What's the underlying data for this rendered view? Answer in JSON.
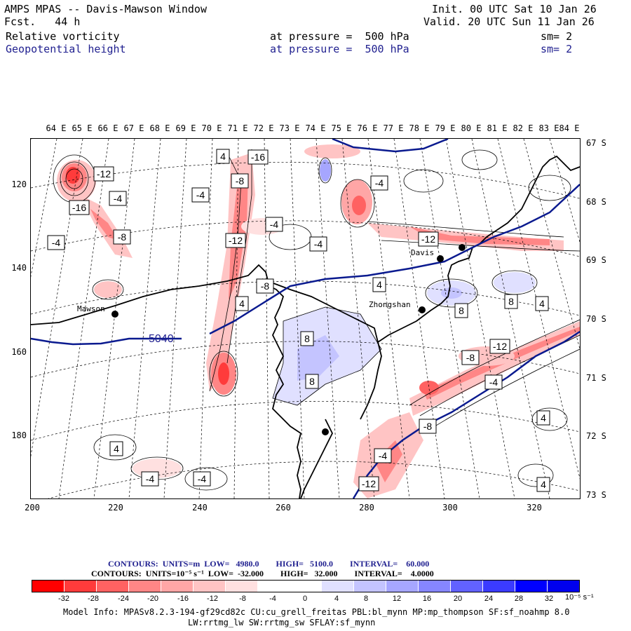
{
  "header": {
    "title": "AMPS MPAS -- Davis-Mawson Window",
    "fcst": "Fcst.   44 h",
    "init": "Init. 00 UTC Sat 10 Jan 26",
    "valid": "Valid. 20 UTC Sun 11 Jan 26",
    "field1": {
      "name": "Relative vorticity",
      "level": "at pressure =  500 hPa",
      "sm": "sm= 2"
    },
    "field2": {
      "name": "Geopotential height",
      "level": "at pressure =  500 hPa",
      "sm": "sm= 2"
    }
  },
  "map": {
    "lon_labels": [
      "64 E",
      "65 E",
      "66 E",
      "67 E",
      "68 E",
      "69 E",
      "70 E",
      "71 E",
      "72 E",
      "73 E",
      "74 E",
      "75 E",
      "76 E",
      "77 E",
      "78 E",
      "79 E",
      "80 E",
      "81 E",
      "82 E",
      "83 E",
      "84 E"
    ],
    "lat_labels": [
      "67 S",
      "68 S",
      "69 S",
      "70 S",
      "71 S",
      "72 S",
      "73 S"
    ],
    "x_ticks": [
      "200",
      "220",
      "240",
      "260",
      "280",
      "300",
      "320"
    ],
    "y_ticks": [
      "120",
      "140",
      "160",
      "180"
    ],
    "stations": [
      {
        "name": "Mawson"
      },
      {
        "name": "Davis"
      },
      {
        "name": "Zhongshan"
      }
    ],
    "height_contour_label": "5040",
    "vort_labels": [
      "-12",
      "-16",
      "-4",
      "-8",
      "4",
      "8",
      "-16",
      "-12",
      "-8",
      "-4",
      "-4",
      "-8",
      "4",
      "-4",
      "-12",
      "8",
      "4",
      "-4",
      "8",
      "4",
      "-8",
      "-12",
      "-4",
      "4",
      "4",
      "-4",
      "-4",
      "4",
      "8",
      "-8",
      "-4",
      "-12",
      "-4"
    ]
  },
  "legend": {
    "contours_height": "CONTOURS:  UNITS=m  LOW=   4980.0        HIGH=   5100.0        INTERVAL=    60.000",
    "contours_vort": "CONTOURS:  UNITS=10⁻⁵ s⁻¹  LOW=  -32.000        HIGH=   32.000        INTERVAL=    4.0000",
    "colors": [
      "#ff0000",
      "#ff3b3b",
      "#ff6262",
      "#ff8686",
      "#ffa6a6",
      "#ffc4c4",
      "#ffe0e0",
      "#ffffff",
      "#ffffff",
      "#e0e0ff",
      "#c4c4ff",
      "#a6a6ff",
      "#8686ff",
      "#6262ff",
      "#3b3bff",
      "#0000ff",
      "#0000ee"
    ],
    "labels": [
      "-32",
      "-28",
      "-24",
      "-20",
      "-16",
      "-12",
      "-8",
      "-4",
      "0",
      "4",
      "8",
      "12",
      "16",
      "20",
      "24",
      "28",
      "32"
    ],
    "unit": "10⁻⁵ s⁻¹"
  },
  "model_info": {
    "line1": "Model Info: MPASv8.2.3-194-gf29cd82c CU:cu_grell_freitas PBL:bl_mynn MP:mp_thompson SF:sf_noahmp 8.0",
    "line2": "LW:rrtmg_lw SW:rrtmg_sw SFLAY:sf_mynn"
  }
}
